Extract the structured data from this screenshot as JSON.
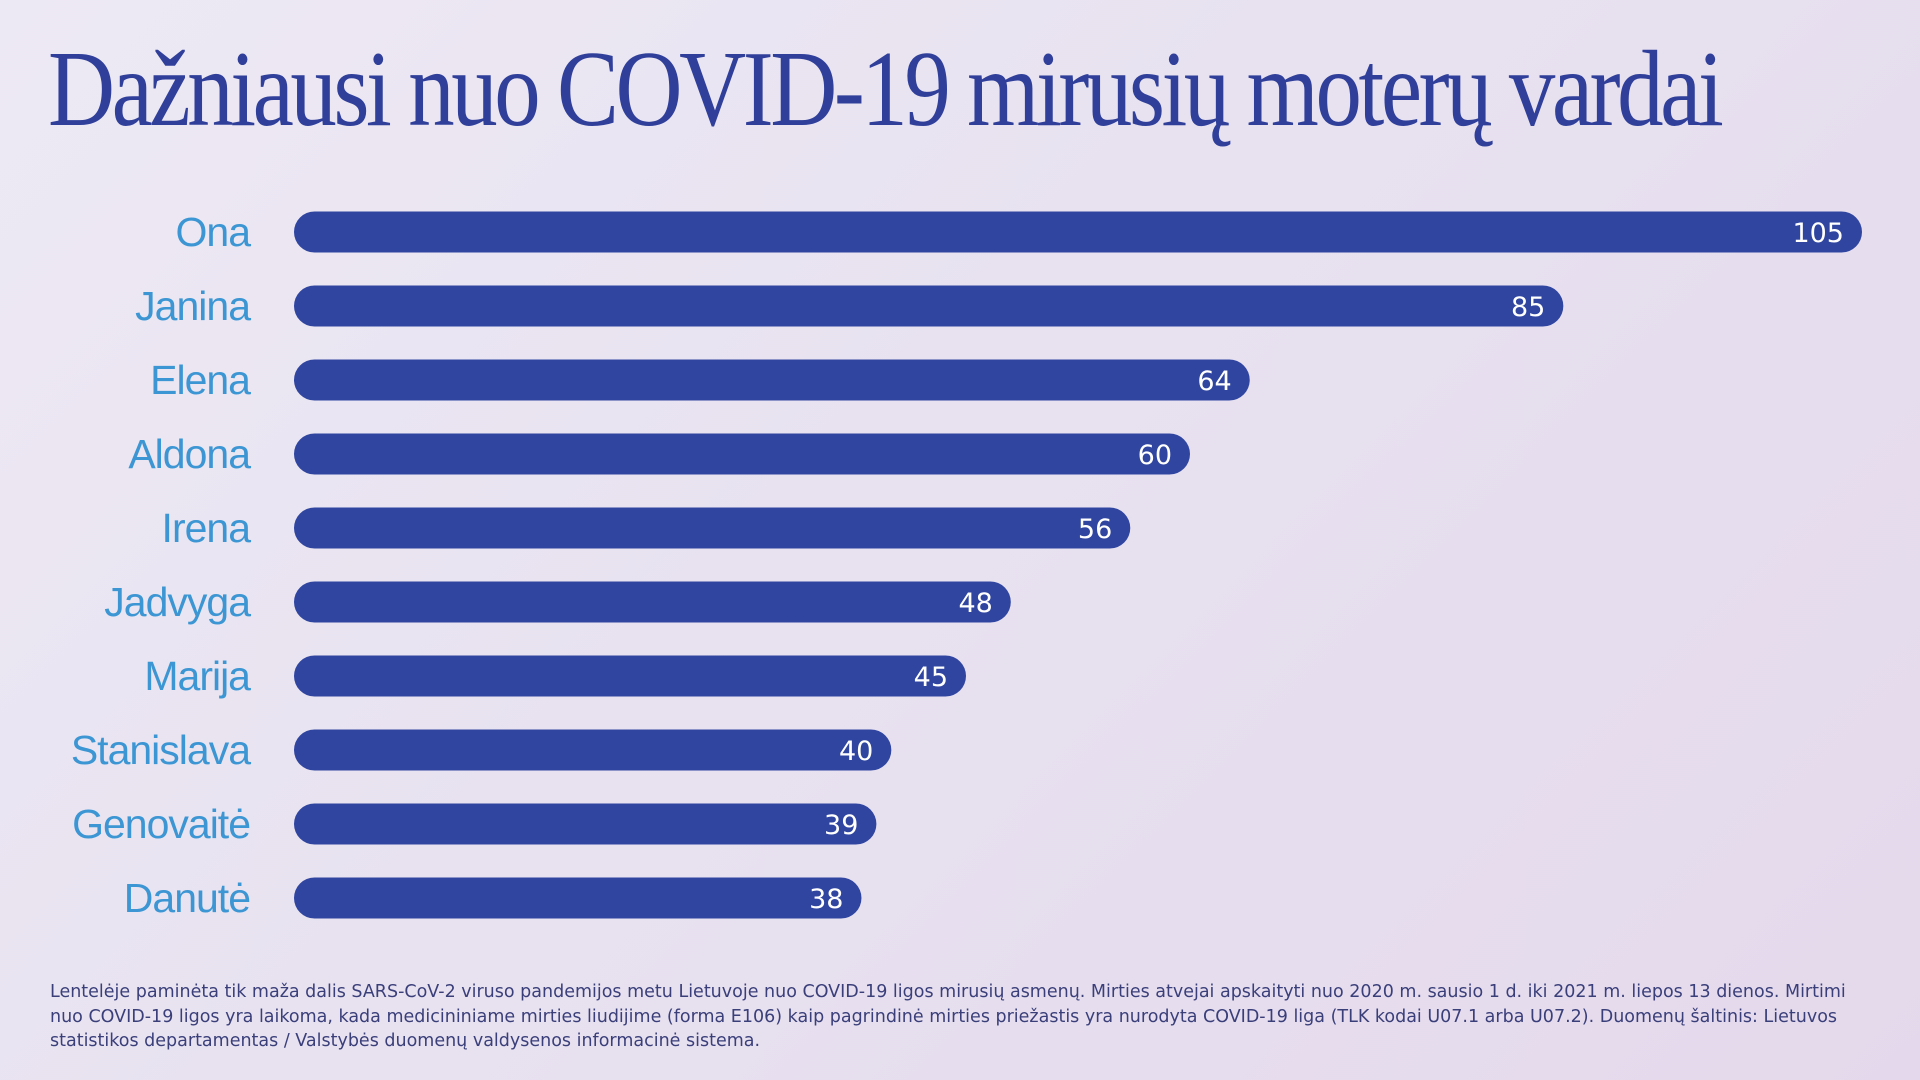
{
  "chart_data": {
    "type": "bar",
    "orientation": "horizontal",
    "title": "Dažniausi nuo COVID-19 mirusių moterų vardai",
    "categories": [
      "Ona",
      "Janina",
      "Elena",
      "Aldona",
      "Irena",
      "Jadvyga",
      "Marija",
      "Stanislava",
      "Genovaitė",
      "Danutė"
    ],
    "values": [
      105,
      85,
      64,
      60,
      56,
      48,
      45,
      40,
      39,
      38
    ],
    "xlim": [
      0,
      105
    ],
    "grid": false,
    "legend": "none",
    "colors": {
      "bar": "#2f45a0",
      "category_label": "#3c96d3",
      "value_label": "#ffffff",
      "title": "#2f3f9a"
    }
  },
  "footnote": "Lentelėje paminėta tik maža dalis SARS-CoV-2 viruso pandemijos metu Lietuvoje nuo COVID-19 ligos mirusių asmenų. Mirties atvejai apskaityti nuo 2020 m. sausio 1 d. iki 2021 m. liepos 13 dienos. Mirtimi nuo COVID-19 ligos yra laikoma, kada medicininiame mirties liudijime (forma E106) kaip pagrindinė mirties priežastis yra nurodyta COVID-19 liga (TLK kodai U07.1 arba U07.2). Duomenų šaltinis: Lietuvos statistikos departamentas / Valstybės duomenų valdysenos informacinė sistema."
}
